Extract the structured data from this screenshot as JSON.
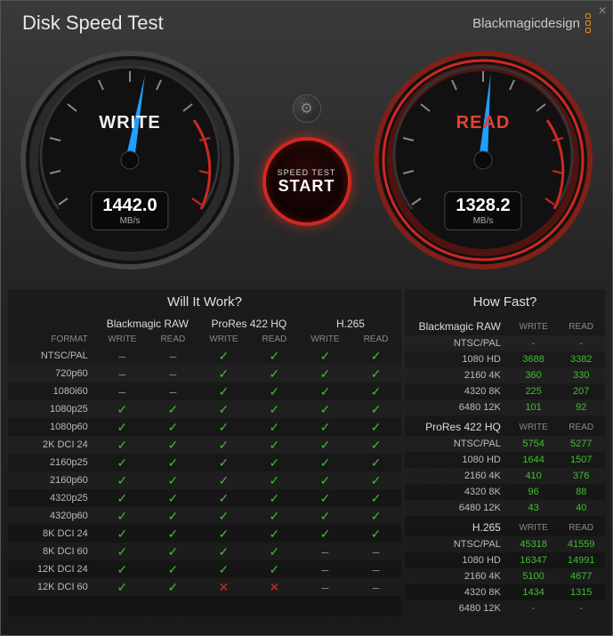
{
  "window": {
    "title": "Disk Speed Test",
    "brand": "Blackmagicdesign"
  },
  "gauges": {
    "write": {
      "label": "WRITE",
      "value": "1442.0",
      "unit": "MB/s",
      "needle_angle": -80,
      "needle_color": "#1ea0ff",
      "ring_color": "#333333"
    },
    "read": {
      "label": "READ",
      "value": "1328.2",
      "unit": "MB/s",
      "needle_angle": -85,
      "needle_color": "#1ea0ff",
      "ring_color": "#d02820"
    }
  },
  "buttons": {
    "start_small": "SPEED TEST",
    "start_big": "START"
  },
  "will_it_work": {
    "title": "Will It Work?",
    "format_header": "FORMAT",
    "codecs": [
      "Blackmagic RAW",
      "ProRes 422 HQ",
      "H.265"
    ],
    "sub_headers": [
      "WRITE",
      "READ"
    ],
    "rows": [
      {
        "format": "NTSC/PAL",
        "cells": [
          "dash",
          "dash",
          "check",
          "check",
          "check",
          "check"
        ]
      },
      {
        "format": "720p60",
        "cells": [
          "dash",
          "dash",
          "check",
          "check",
          "check",
          "check"
        ]
      },
      {
        "format": "1080i60",
        "cells": [
          "dash",
          "dash",
          "check",
          "check",
          "check",
          "check"
        ]
      },
      {
        "format": "1080p25",
        "cells": [
          "check",
          "check",
          "check",
          "check",
          "check",
          "check"
        ]
      },
      {
        "format": "1080p60",
        "cells": [
          "check",
          "check",
          "check",
          "check",
          "check",
          "check"
        ]
      },
      {
        "format": "2K DCI 24",
        "cells": [
          "check",
          "check",
          "check",
          "check",
          "check",
          "check"
        ]
      },
      {
        "format": "2160p25",
        "cells": [
          "check",
          "check",
          "check",
          "check",
          "check",
          "check"
        ]
      },
      {
        "format": "2160p60",
        "cells": [
          "check",
          "check",
          "check",
          "check",
          "check",
          "check"
        ]
      },
      {
        "format": "4320p25",
        "cells": [
          "check",
          "check",
          "check",
          "check",
          "check",
          "check"
        ]
      },
      {
        "format": "4320p60",
        "cells": [
          "check",
          "check",
          "check",
          "check",
          "check",
          "check"
        ]
      },
      {
        "format": "8K DCI 24",
        "cells": [
          "check",
          "check",
          "check",
          "check",
          "check",
          "check"
        ]
      },
      {
        "format": "8K DCI 60",
        "cells": [
          "check",
          "check",
          "check",
          "check",
          "dash",
          "dash"
        ]
      },
      {
        "format": "12K DCI 24",
        "cells": [
          "check",
          "check",
          "check",
          "check",
          "dash",
          "dash"
        ]
      },
      {
        "format": "12K DCI 60",
        "cells": [
          "check",
          "check",
          "cross",
          "cross",
          "dash",
          "dash"
        ]
      }
    ]
  },
  "how_fast": {
    "title": "How Fast?",
    "sub_headers": [
      "WRITE",
      "READ"
    ],
    "groups": [
      {
        "codec": "Blackmagic RAW",
        "rows": [
          {
            "format": "NTSC/PAL",
            "write": "-",
            "read": "-"
          },
          {
            "format": "1080 HD",
            "write": "3688",
            "read": "3382"
          },
          {
            "format": "2160 4K",
            "write": "360",
            "read": "330"
          },
          {
            "format": "4320 8K",
            "write": "225",
            "read": "207"
          },
          {
            "format": "6480 12K",
            "write": "101",
            "read": "92"
          }
        ]
      },
      {
        "codec": "ProRes 422 HQ",
        "rows": [
          {
            "format": "NTSC/PAL",
            "write": "5754",
            "read": "5277"
          },
          {
            "format": "1080 HD",
            "write": "1644",
            "read": "1507"
          },
          {
            "format": "2160 4K",
            "write": "410",
            "read": "376"
          },
          {
            "format": "4320 8K",
            "write": "96",
            "read": "88"
          },
          {
            "format": "6480 12K",
            "write": "43",
            "read": "40"
          }
        ]
      },
      {
        "codec": "H.265",
        "rows": [
          {
            "format": "NTSC/PAL",
            "write": "45318",
            "read": "41559"
          },
          {
            "format": "1080 HD",
            "write": "16347",
            "read": "14991"
          },
          {
            "format": "2160 4K",
            "write": "5100",
            "read": "4677"
          },
          {
            "format": "4320 8K",
            "write": "1434",
            "read": "1315"
          },
          {
            "format": "6480 12K",
            "write": "-",
            "read": "-"
          }
        ]
      }
    ]
  },
  "colors": {
    "check": "#3fbf30",
    "cross": "#d02820",
    "dash": "#888888",
    "value": "#3fbf30",
    "bg": "#1a1a1a"
  }
}
